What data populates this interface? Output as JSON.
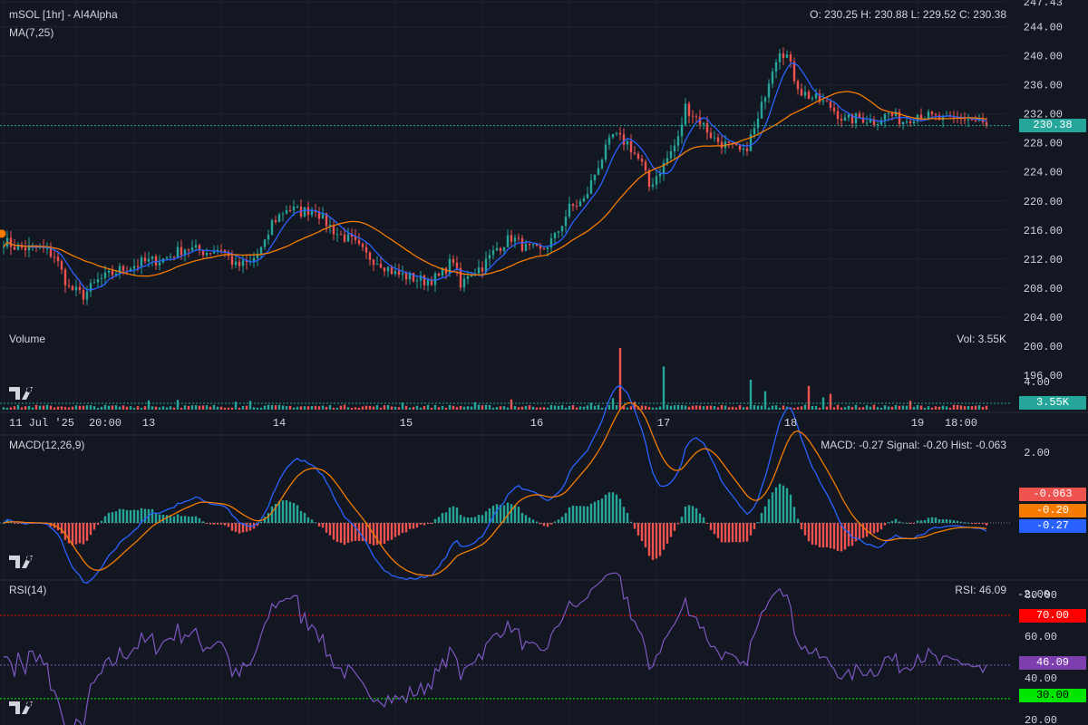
{
  "header": {
    "title": "mSOL [1hr] - AI4Alpha",
    "ma_label": "MA(7,25)",
    "ohlc": "O: 230.25 H: 230.88 L: 229.52 C: 230.38",
    "volume_label": "Volume",
    "volume_value": "Vol: 3.55K",
    "macd_label": "MACD(12,26,9)",
    "macd_values": "MACD: -0.27 Signal: -0.20 Hist: -0.063",
    "rsi_label": "RSI(14)",
    "rsi_value": "RSI: 46.09"
  },
  "tags": {
    "price": "230.38",
    "volume": "3.55K",
    "hist": "-0.063",
    "signal": "-0.20",
    "macd": "-0.27",
    "rsi": "46.09",
    "rsi_high": "70.00",
    "rsi_low": "30.00"
  },
  "colors": {
    "background": "#131722",
    "up": "#26a69a",
    "down": "#ef5350",
    "ma7": "#2962ff",
    "ma25": "#f57c00",
    "macd": "#2962ff",
    "signal": "#f57c00",
    "rsi": "#7e57c2",
    "rsi_tag": "#7e3fae",
    "overbought": "#ff0000",
    "oversold": "#00ff00",
    "price_line": "#26a69a"
  },
  "chart_data": [
    {
      "type": "candlestick",
      "title": "mSOL [1hr] - AI4Alpha",
      "ylim": [
        204,
        247.43
      ],
      "yticks": [
        "247.43",
        "244.00",
        "240.00",
        "236.00",
        "232.00",
        "228.00",
        "224.00",
        "220.00",
        "216.00",
        "212.00",
        "208.00",
        "204.00"
      ],
      "xticks": [
        "11 Jul '25",
        "20:00",
        "13",
        "14",
        "15",
        "16",
        "17",
        "18",
        "19",
        "18:00"
      ],
      "last_close": 230.38,
      "anchors": [
        [
          0,
          214.5
        ],
        [
          4,
          213.5
        ],
        [
          10,
          213.5
        ],
        [
          14,
          212.5
        ],
        [
          18,
          208
        ],
        [
          22,
          207
        ],
        [
          26,
          209
        ],
        [
          32,
          210.5
        ],
        [
          38,
          211.5
        ],
        [
          44,
          212
        ],
        [
          50,
          213.5
        ],
        [
          56,
          213
        ],
        [
          60,
          213.5
        ],
        [
          64,
          211
        ],
        [
          68,
          211.5
        ],
        [
          72,
          214
        ],
        [
          74,
          217
        ],
        [
          78,
          219
        ],
        [
          82,
          218.5
        ],
        [
          86,
          219
        ],
        [
          88,
          217.5
        ],
        [
          92,
          215.5
        ],
        [
          96,
          214.5
        ],
        [
          100,
          212.5
        ],
        [
          104,
          211.5
        ],
        [
          108,
          210
        ],
        [
          112,
          209.5
        ],
        [
          116,
          209
        ],
        [
          120,
          209.5
        ],
        [
          124,
          212
        ],
        [
          126,
          208
        ],
        [
          128,
          210
        ],
        [
          132,
          211
        ],
        [
          136,
          213.5
        ],
        [
          140,
          215
        ],
        [
          144,
          213.5
        ],
        [
          148,
          213
        ],
        [
          152,
          215
        ],
        [
          156,
          219
        ],
        [
          160,
          220
        ],
        [
          164,
          225
        ],
        [
          168,
          229
        ],
        [
          172,
          228
        ],
        [
          176,
          225
        ],
        [
          178,
          222
        ],
        [
          182,
          225
        ],
        [
          186,
          228.5
        ],
        [
          188,
          233
        ],
        [
          192,
          231
        ],
        [
          196,
          228.5
        ],
        [
          200,
          227.5
        ],
        [
          204,
          226.5
        ],
        [
          208,
          231
        ],
        [
          210,
          235
        ],
        [
          212,
          238.5
        ],
        [
          214,
          241
        ],
        [
          216,
          240
        ],
        [
          218,
          237
        ],
        [
          220,
          235
        ],
        [
          224,
          234
        ],
        [
          228,
          233
        ],
        [
          232,
          231
        ],
        [
          236,
          231.5
        ],
        [
          240,
          231
        ],
        [
          244,
          232
        ],
        [
          248,
          231
        ],
        [
          252,
          232
        ],
        [
          256,
          231.5
        ],
        [
          260,
          231
        ],
        [
          264,
          231.5
        ],
        [
          268,
          231
        ],
        [
          271,
          230.38
        ]
      ],
      "series": [
        {
          "name": "MA7",
          "kind": "moving-average",
          "period": 7
        },
        {
          "name": "MA25",
          "kind": "moving-average",
          "period": 25
        }
      ]
    },
    {
      "type": "bar",
      "title": "Volume",
      "ylim": [
        0,
        14
      ],
      "baseline": 0.8,
      "spikes": [
        [
          40,
          2.1
        ],
        [
          48,
          2.2
        ],
        [
          64,
          1.8
        ],
        [
          68,
          2.0
        ],
        [
          110,
          1.6
        ],
        [
          130,
          1.7
        ],
        [
          140,
          2.3
        ],
        [
          162,
          1.6
        ],
        [
          168,
          2.6
        ],
        [
          170,
          14
        ],
        [
          174,
          1.8
        ],
        [
          182,
          9.8
        ],
        [
          206,
          6.8
        ],
        [
          210,
          4.2
        ],
        [
          222,
          5.4
        ],
        [
          226,
          2.8
        ],
        [
          228,
          3.6
        ],
        [
          250,
          2.0
        ]
      ],
      "last_value": "3.55K"
    },
    {
      "type": "line",
      "title": "MACD(12,26,9)",
      "ylim": [
        -2.8,
        4.35
      ],
      "yticks": [
        "4.00",
        "2.00",
        "-2.00"
      ],
      "series": [
        {
          "name": "MACD",
          "last": -0.27
        },
        {
          "name": "Signal",
          "last": -0.2
        },
        {
          "name": "Hist",
          "last": -0.063
        }
      ]
    },
    {
      "type": "line",
      "title": "RSI(14)",
      "ylim": [
        16,
        86
      ],
      "yticks": [
        "80.00",
        "60.00",
        "40.00",
        "20.00"
      ],
      "levels": [
        70,
        30
      ],
      "last": 46.09
    }
  ]
}
